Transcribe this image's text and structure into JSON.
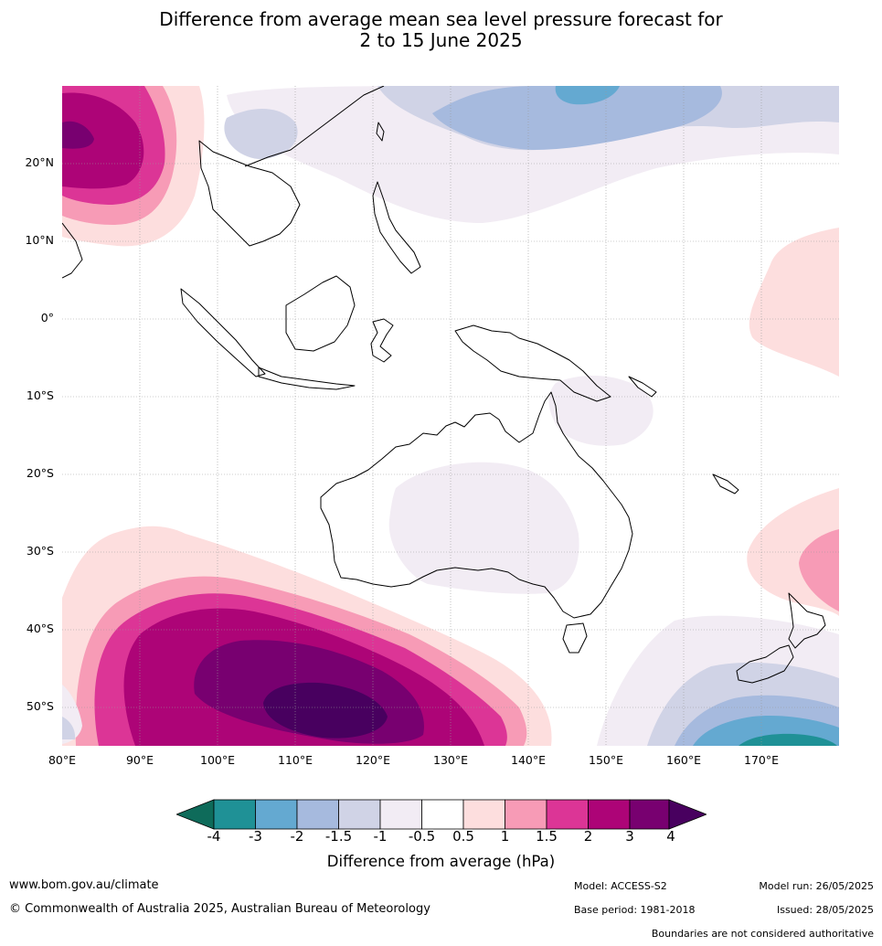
{
  "title_line1": "Difference from average mean sea level pressure forecast for",
  "title_line2": "2 to 15 June 2025",
  "latitude_labels": [
    "20°N",
    "10°N",
    "0°",
    "10°S",
    "20°S",
    "30°S",
    "40°S",
    "50°S"
  ],
  "longitude_labels": [
    "80°E",
    "90°E",
    "100°E",
    "110°E",
    "120°E",
    "130°E",
    "140°E",
    "150°E",
    "160°E",
    "170°E"
  ],
  "colorbar": {
    "label": "Difference from average (hPa)",
    "ticks": [
      "-4",
      "-3",
      "-2",
      "-1.5",
      "-1",
      "-0.5",
      "0.5",
      "1",
      "1.5",
      "2",
      "3",
      "4"
    ],
    "colors": [
      "#0e6b5a",
      "#1f9196",
      "#64a9d1",
      "#a6bade",
      "#d0d3e6",
      "#f2ecf4",
      "#ffffff",
      "#fddede",
      "#f79bb6",
      "#dc3596",
      "#ad0477",
      "#780070",
      "#48005f"
    ]
  },
  "footer": {
    "website": "www.bom.gov.au/climate",
    "copyright": "© Commonwealth of Australia 2025, Australian Bureau of Meteorology",
    "model": "Model: ACCESS-S2",
    "base_period": "Base period: 1981-2018",
    "model_run": "Model run: 26/05/2025",
    "issued": "Issued: 28/05/2025",
    "disclaimer": "Boundaries are not considered authoritative"
  }
}
